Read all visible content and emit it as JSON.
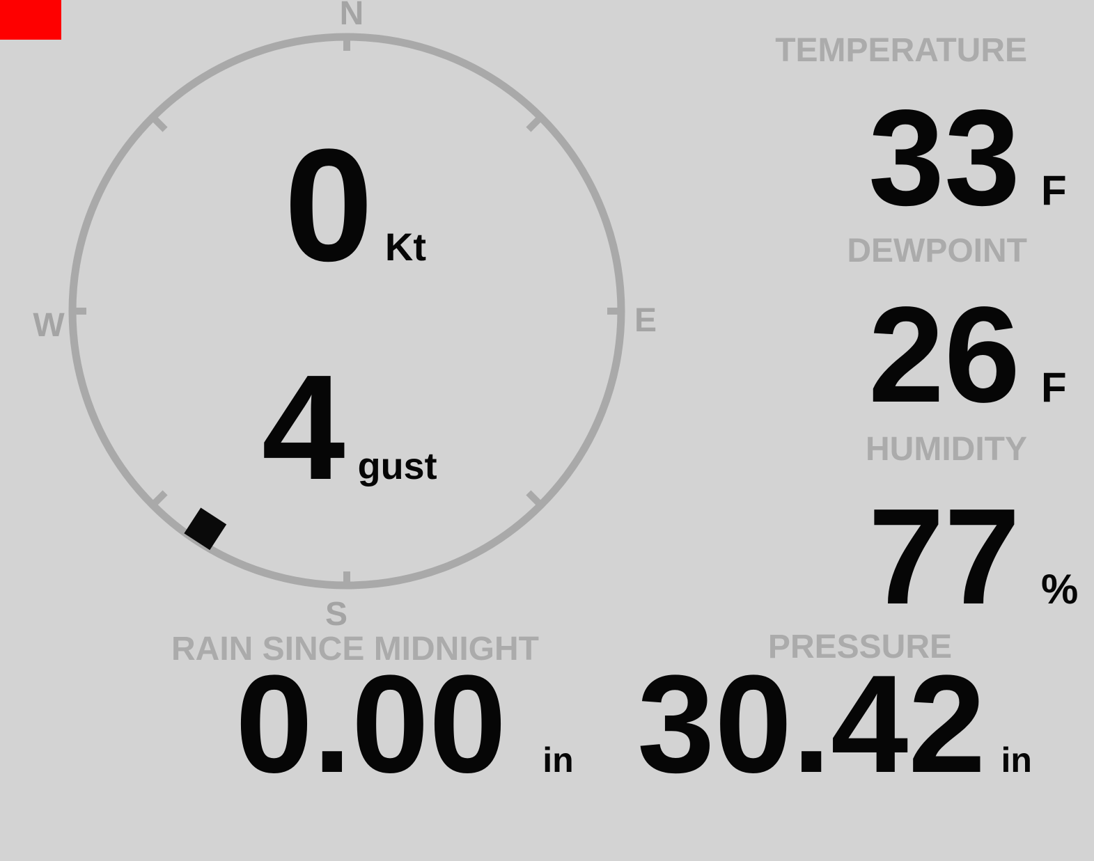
{
  "status": {
    "alert_color": "#fe0000"
  },
  "compass": {
    "cardinal_n": "N",
    "cardinal_e": "E",
    "cardinal_s": "S",
    "cardinal_w": "W",
    "wind_speed": "0",
    "wind_speed_unit": "Kt",
    "wind_gust": "4",
    "wind_gust_unit": "gust",
    "wind_direction_deg": 213
  },
  "metrics": {
    "temperature": {
      "label": "TEMPERATURE",
      "value": "33",
      "unit": "F"
    },
    "dewpoint": {
      "label": "DEWPOINT",
      "value": "26",
      "unit": "F"
    },
    "humidity": {
      "label": "HUMIDITY",
      "value": "77",
      "unit": "%"
    },
    "rain": {
      "label": "RAIN SINCE MIDNIGHT",
      "value": "0.00",
      "unit": "in"
    },
    "pressure": {
      "label": "PRESSURE",
      "value": "30.42",
      "unit": "in"
    }
  },
  "colors": {
    "background": "#d3d3d3",
    "dial": "#a9a9a9",
    "label_gray": "#ababab",
    "value_black": "#060606"
  }
}
